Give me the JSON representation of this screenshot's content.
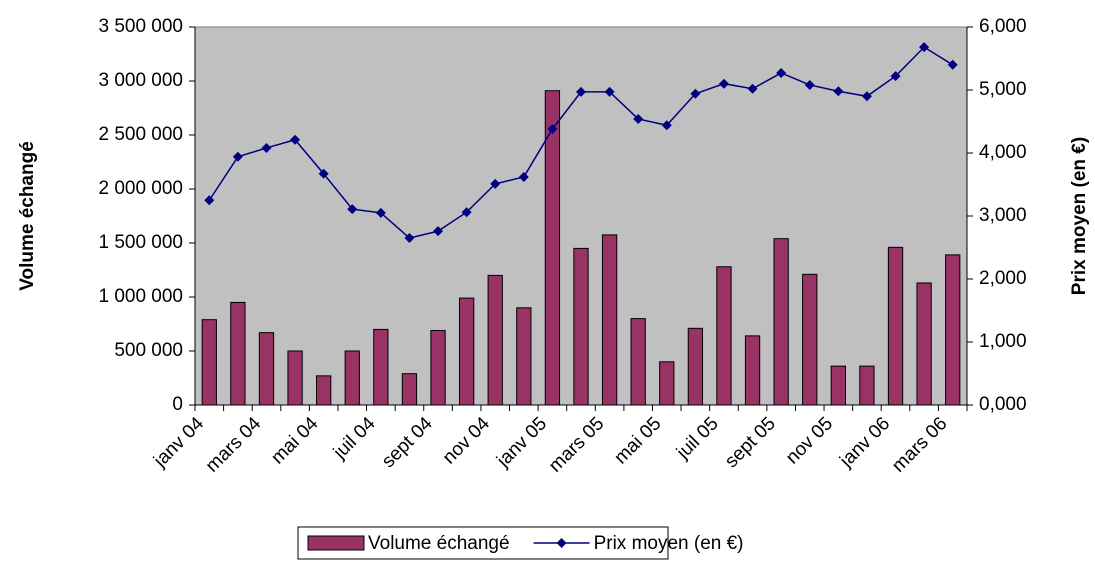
{
  "chart_data": {
    "type": "bar_line",
    "y_label": "Volume échangé",
    "y2_label": "Prix moyen (en €)",
    "categories": [
      "janv 04",
      null,
      "mars 04",
      null,
      "mai 04",
      null,
      "juil 04",
      null,
      "sept 04",
      null,
      "nov 04",
      null,
      "janv 05",
      null,
      "mars 05",
      null,
      "mai 05",
      null,
      "juil 05",
      null,
      "sept 05",
      null,
      "nov 05",
      null,
      "janv 06",
      null,
      "mars 06"
    ],
    "series": [
      {
        "name": "Volume échangé",
        "color": "#993366",
        "type": "bar",
        "axis": "y",
        "values": [
          790000,
          950000,
          670000,
          500000,
          270000,
          500000,
          700000,
          290000,
          690000,
          990000,
          1200000,
          900000,
          2910000,
          1450000,
          1575000,
          800000,
          400000,
          710000,
          1280000,
          640000,
          1540000,
          1210000,
          360000,
          360000,
          1460000,
          1130000,
          1390000
        ]
      },
      {
        "name": "Prix moyen (en €)",
        "color": "#000080",
        "type": "line",
        "axis": "y2",
        "values": [
          3250,
          3940,
          4080,
          4210,
          3670,
          3110,
          3050,
          2650,
          2760,
          3060,
          3510,
          3620,
          4380,
          4970,
          4970,
          4540,
          4440,
          4940,
          5100,
          5020,
          5270,
          5080,
          4980,
          4900,
          5220,
          5680,
          5400
        ]
      }
    ],
    "ylim": [
      0,
      3500000
    ],
    "yticks": [
      0,
      {
        "value": 500000,
        "label": "500 000"
      },
      {
        "value": 1000000,
        "label": "1 000 000"
      },
      {
        "value": 1500000,
        "label": "1 500 000"
      },
      {
        "value": 2000000,
        "label": "2 000 000"
      },
      {
        "value": 2500000,
        "label": "2 500 000"
      },
      {
        "value": 3000000,
        "label": "3 000 000"
      },
      {
        "value": 3500000,
        "label": "3 500 000"
      }
    ],
    "y2lim": [
      0,
      6000
    ],
    "y2ticks": [
      {
        "value": 0,
        "label": "0,000"
      },
      {
        "value": 1000,
        "label": "1,000"
      },
      {
        "value": 2000,
        "label": "2,000"
      },
      {
        "value": 3000,
        "label": "3,000"
      },
      {
        "value": 4000,
        "label": "4,000"
      },
      {
        "value": 5000,
        "label": "5,000"
      },
      {
        "value": 6000,
        "label": "6,000"
      }
    ],
    "plot_background": "#c0c0c0",
    "legend": "bottom"
  }
}
